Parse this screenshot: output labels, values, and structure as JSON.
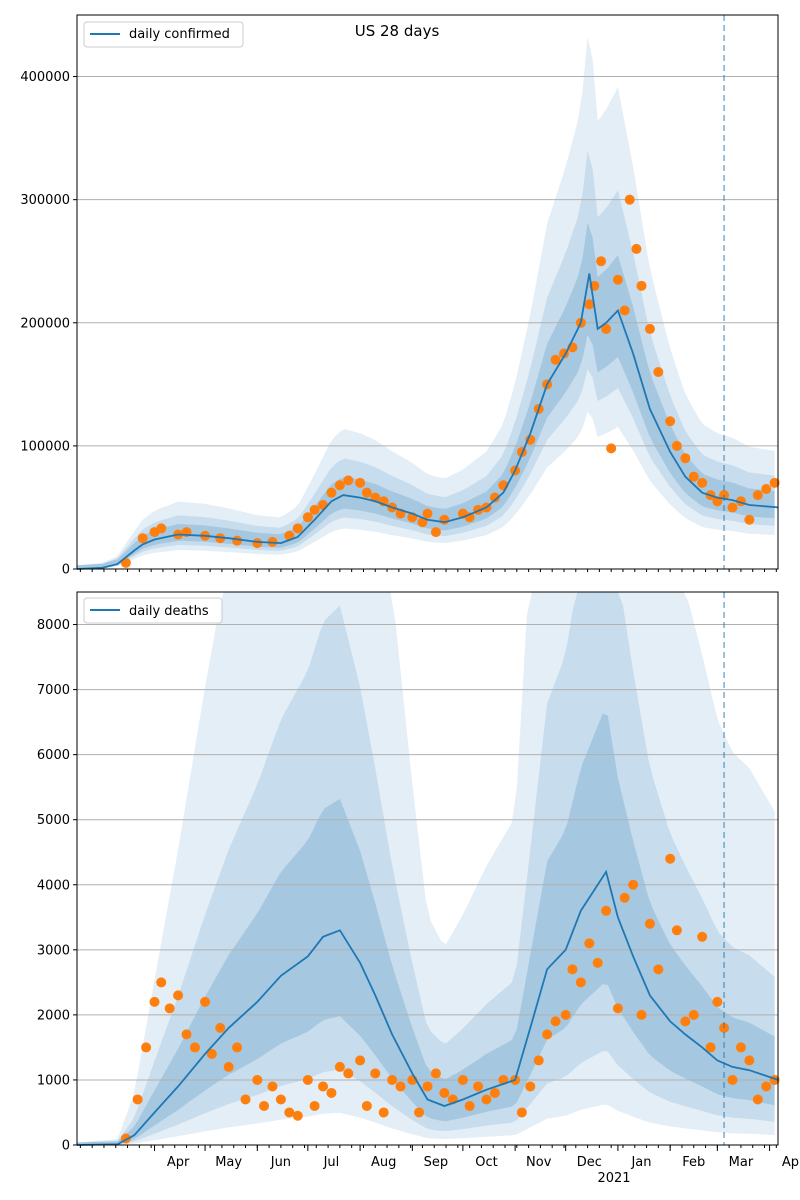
{
  "figure_title": "US 28 days",
  "chart_data": [
    {
      "type": "line",
      "title": "US 28 days",
      "legend": {
        "label": "daily confirmed",
        "placement": "top-left"
      },
      "ylim": [
        0,
        450000
      ],
      "yticks": [
        0,
        100000,
        200000,
        300000,
        400000
      ],
      "ytick_labels": [
        "0",
        "100000",
        "200000",
        "300000",
        "400000"
      ],
      "xlim": [
        "2020-02-15",
        "2021-04-06"
      ],
      "grid": "horizontal",
      "forecast_start": "2021-03-05",
      "series": [
        {
          "name": "daily confirmed",
          "type": "line",
          "color": "#1f77b4",
          "x": [
            "2020-02-15",
            "2020-03-01",
            "2020-03-10",
            "2020-03-20",
            "2020-03-25",
            "2020-04-01",
            "2020-04-15",
            "2020-05-01",
            "2020-05-15",
            "2020-06-01",
            "2020-06-15",
            "2020-06-25",
            "2020-07-05",
            "2020-07-15",
            "2020-07-22",
            "2020-08-01",
            "2020-08-10",
            "2020-08-20",
            "2020-09-01",
            "2020-09-10",
            "2020-09-20",
            "2020-10-01",
            "2020-10-15",
            "2020-10-25",
            "2020-11-01",
            "2020-11-10",
            "2020-11-20",
            "2020-12-01",
            "2020-12-10",
            "2020-12-15",
            "2020-12-20",
            "2020-12-25",
            "2021-01-01",
            "2021-01-10",
            "2021-01-20",
            "2021-02-01",
            "2021-02-10",
            "2021-02-20",
            "2021-03-01",
            "2021-03-10",
            "2021-03-20",
            "2021-04-06"
          ],
          "values": [
            0,
            1000,
            4000,
            15000,
            20000,
            24000,
            28000,
            27000,
            25000,
            22000,
            21000,
            26000,
            40000,
            55000,
            60000,
            58000,
            55000,
            50000,
            45000,
            40000,
            38000,
            42000,
            50000,
            62000,
            80000,
            110000,
            150000,
            175000,
            200000,
            240000,
            195000,
            200000,
            210000,
            175000,
            130000,
            95000,
            75000,
            62000,
            58000,
            56000,
            52000,
            50000
          ]
        },
        {
          "name": "observed daily confirmed",
          "type": "scatter",
          "color": "#ff7f0e",
          "x": [
            "2020-03-15",
            "2020-03-25",
            "2020-04-01",
            "2020-04-05",
            "2020-04-15",
            "2020-04-20",
            "2020-05-01",
            "2020-05-10",
            "2020-05-20",
            "2020-06-01",
            "2020-06-10",
            "2020-06-20",
            "2020-06-25",
            "2020-07-01",
            "2020-07-05",
            "2020-07-10",
            "2020-07-15",
            "2020-07-20",
            "2020-07-25",
            "2020-08-01",
            "2020-08-05",
            "2020-08-10",
            "2020-08-15",
            "2020-08-20",
            "2020-08-25",
            "2020-09-01",
            "2020-09-07",
            "2020-09-10",
            "2020-09-15",
            "2020-09-20",
            "2020-10-01",
            "2020-10-05",
            "2020-10-10",
            "2020-10-15",
            "2020-10-20",
            "2020-10-25",
            "2020-11-01",
            "2020-11-05",
            "2020-11-10",
            "2020-11-15",
            "2020-11-20",
            "2020-11-25",
            "2020-11-30",
            "2020-12-05",
            "2020-12-10",
            "2020-12-15",
            "2020-12-18",
            "2020-12-22",
            "2020-12-25",
            "2020-12-28",
            "2021-01-01",
            "2021-01-05",
            "2021-01-08",
            "2021-01-12",
            "2021-01-15",
            "2021-01-20",
            "2021-01-25",
            "2021-02-01",
            "2021-02-05",
            "2021-02-10",
            "2021-02-15",
            "2021-02-20",
            "2021-02-25",
            "2021-03-01",
            "2021-03-05",
            "2021-03-10",
            "2021-03-15",
            "2021-03-20",
            "2021-03-25",
            "2021-03-30",
            "2021-04-04"
          ],
          "values": [
            5000,
            25000,
            30000,
            33000,
            28000,
            30000,
            27000,
            25000,
            23000,
            21000,
            22000,
            27000,
            33000,
            42000,
            48000,
            52000,
            62000,
            68000,
            72000,
            70000,
            62000,
            58000,
            55000,
            50000,
            45000,
            42000,
            38000,
            45000,
            30000,
            40000,
            45000,
            42000,
            48000,
            50000,
            58000,
            68000,
            80000,
            95000,
            105000,
            130000,
            150000,
            170000,
            175000,
            180000,
            200000,
            215000,
            230000,
            250000,
            195000,
            98000,
            235000,
            210000,
            300000,
            260000,
            230000,
            195000,
            160000,
            120000,
            100000,
            90000,
            75000,
            70000,
            60000,
            55000,
            60000,
            50000,
            55000,
            40000,
            60000,
            65000,
            70000
          ]
        }
      ]
    },
    {
      "type": "line",
      "legend": {
        "label": "daily deaths",
        "placement": "top-left"
      },
      "ylim": [
        0,
        8500
      ],
      "yticks": [
        0,
        1000,
        2000,
        3000,
        4000,
        5000,
        6000,
        7000,
        8000
      ],
      "ytick_labels": [
        "0",
        "1000",
        "2000",
        "3000",
        "4000",
        "5000",
        "6000",
        "7000",
        "8000"
      ],
      "xlim": [
        "2020-02-15",
        "2021-04-06"
      ],
      "grid": "horizontal",
      "forecast_start": "2021-03-05",
      "xtick_labels": [
        "Apr",
        "May",
        "Jun",
        "Jul",
        "Aug",
        "Sep",
        "Oct",
        "Nov",
        "Dec",
        "Jan",
        "Feb",
        "Mar",
        "Apr"
      ],
      "xtick_dates": [
        "2020-04-01",
        "2020-05-01",
        "2020-06-01",
        "2020-07-01",
        "2020-08-01",
        "2020-09-01",
        "2020-10-01",
        "2020-11-01",
        "2020-12-01",
        "2021-01-01",
        "2021-02-01",
        "2021-03-01",
        "2021-04-01"
      ],
      "year_label": "2021",
      "series": [
        {
          "name": "daily deaths",
          "type": "line",
          "color": "#1f77b4",
          "x": [
            "2020-02-15",
            "2020-03-10",
            "2020-03-20",
            "2020-04-01",
            "2020-04-15",
            "2020-05-01",
            "2020-05-15",
            "2020-06-01",
            "2020-06-15",
            "2020-07-01",
            "2020-07-10",
            "2020-07-20",
            "2020-08-01",
            "2020-08-10",
            "2020-08-20",
            "2020-09-01",
            "2020-09-10",
            "2020-09-20",
            "2020-10-01",
            "2020-10-15",
            "2020-11-01",
            "2020-11-10",
            "2020-11-20",
            "2020-12-01",
            "2020-12-10",
            "2020-12-20",
            "2020-12-25",
            "2021-01-01",
            "2021-01-10",
            "2021-01-20",
            "2021-02-01",
            "2021-02-10",
            "2021-02-20",
            "2021-03-01",
            "2021-03-10",
            "2021-03-20",
            "2021-04-06"
          ],
          "values": [
            0,
            10,
            150,
            500,
            900,
            1400,
            1800,
            2200,
            2600,
            2900,
            3200,
            3300,
            2800,
            2300,
            1700,
            1100,
            700,
            600,
            700,
            850,
            1000,
            1800,
            2700,
            3000,
            3600,
            4000,
            4200,
            3500,
            2900,
            2300,
            1900,
            1700,
            1500,
            1300,
            1200,
            1150,
            1000
          ]
        },
        {
          "name": "observed daily deaths",
          "type": "scatter",
          "color": "#ff7f0e",
          "x": [
            "2020-03-15",
            "2020-03-22",
            "2020-03-27",
            "2020-04-01",
            "2020-04-05",
            "2020-04-10",
            "2020-04-15",
            "2020-04-20",
            "2020-04-25",
            "2020-05-01",
            "2020-05-05",
            "2020-05-10",
            "2020-05-15",
            "2020-05-20",
            "2020-05-25",
            "2020-06-01",
            "2020-06-05",
            "2020-06-10",
            "2020-06-15",
            "2020-06-20",
            "2020-06-25",
            "2020-07-01",
            "2020-07-05",
            "2020-07-10",
            "2020-07-15",
            "2020-07-20",
            "2020-07-25",
            "2020-08-01",
            "2020-08-05",
            "2020-08-10",
            "2020-08-15",
            "2020-08-20",
            "2020-08-25",
            "2020-09-01",
            "2020-09-05",
            "2020-09-10",
            "2020-09-15",
            "2020-09-20",
            "2020-09-25",
            "2020-10-01",
            "2020-10-05",
            "2020-10-10",
            "2020-10-15",
            "2020-10-20",
            "2020-10-25",
            "2020-11-01",
            "2020-11-05",
            "2020-11-10",
            "2020-11-15",
            "2020-11-20",
            "2020-11-25",
            "2020-12-01",
            "2020-12-05",
            "2020-12-10",
            "2020-12-15",
            "2020-12-20",
            "2020-12-25",
            "2021-01-01",
            "2021-01-05",
            "2021-01-10",
            "2021-01-15",
            "2021-01-20",
            "2021-01-25",
            "2021-02-01",
            "2021-02-05",
            "2021-02-10",
            "2021-02-15",
            "2021-02-20",
            "2021-02-25",
            "2021-03-01",
            "2021-03-05",
            "2021-03-10",
            "2021-03-15",
            "2021-03-20",
            "2021-03-25",
            "2021-03-30",
            "2021-04-04"
          ],
          "values": [
            100,
            700,
            1500,
            2200,
            2500,
            2100,
            2300,
            1700,
            1500,
            2200,
            1400,
            1800,
            1200,
            1500,
            700,
            1000,
            600,
            900,
            700,
            500,
            450,
            1000,
            600,
            900,
            800,
            1200,
            1100,
            1300,
            600,
            1100,
            500,
            1000,
            900,
            1000,
            500,
            900,
            1100,
            800,
            700,
            1000,
            600,
            900,
            700,
            800,
            1000,
            1000,
            500,
            900,
            1300,
            1700,
            1900,
            2000,
            2700,
            2500,
            3100,
            2800,
            3600,
            2100,
            3800,
            4000,
            2000,
            3400,
            2700,
            4400,
            3300,
            1900,
            2000,
            3200,
            1500,
            2200,
            1800,
            1000,
            1500,
            1300,
            700,
            900,
            1000
          ]
        }
      ]
    }
  ]
}
